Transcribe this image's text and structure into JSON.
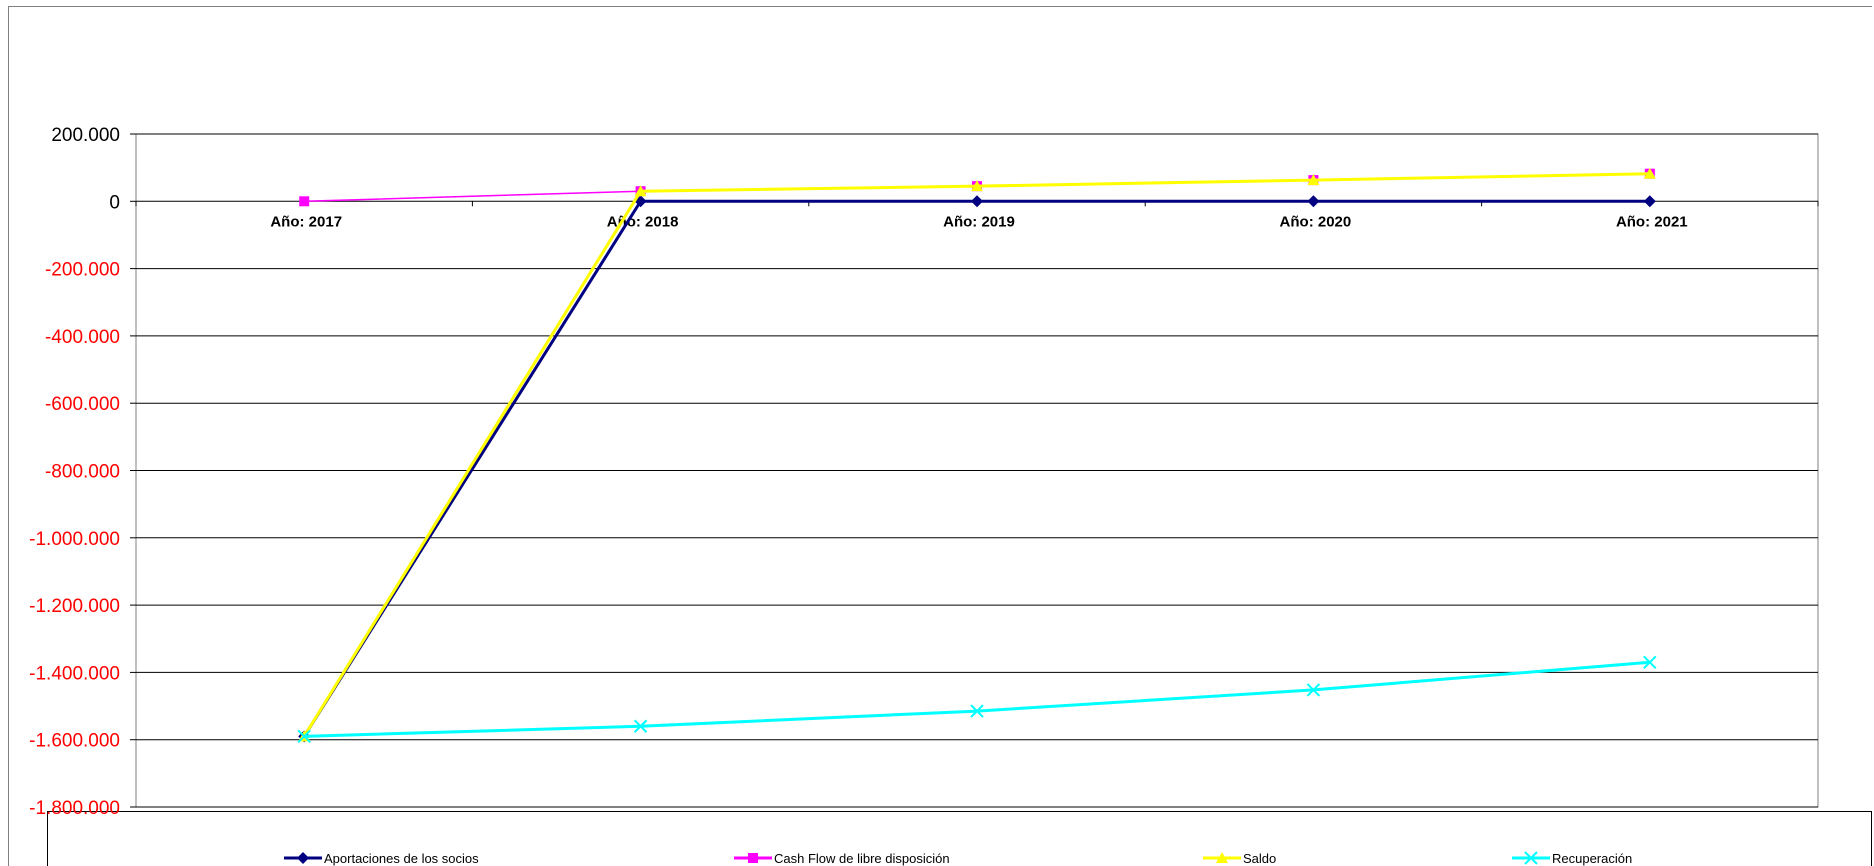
{
  "chart_data": {
    "type": "line",
    "categories": [
      "Año:  2017",
      "Año:  2018",
      "Año:  2019",
      "Año:  2020",
      "Año:  2021"
    ],
    "ylim": [
      -1800000,
      200000
    ],
    "yticks": [
      200000,
      0,
      -200000,
      -400000,
      -600000,
      -800000,
      -1000000,
      -1200000,
      -1400000,
      -1600000,
      -1800000
    ],
    "ytick_labels": [
      "200.000",
      "0",
      "-200.000",
      "-400.000",
      "-600.000",
      "-800.000",
      "-1.000.000",
      "-1.200.000",
      "-1.400.000",
      "-1.600.000",
      "-1.800.000"
    ],
    "grid": true,
    "legend_position": "bottom",
    "series": [
      {
        "name": "Aportaciones de los socios",
        "color": "#000080",
        "marker": "diamond",
        "values": [
          -1590000,
          0,
          0,
          0,
          0
        ]
      },
      {
        "name": "Cash Flow de libre disposición",
        "color": "#FF00FF",
        "marker": "square",
        "values": [
          0,
          30000,
          45000,
          63000,
          82000
        ]
      },
      {
        "name": "Saldo",
        "color": "#FFFF00",
        "marker": "triangle",
        "values": [
          -1590000,
          30000,
          45000,
          63000,
          82000
        ]
      },
      {
        "name": "Recuperación",
        "color": "#00FFFF",
        "marker": "x",
        "values": [
          -1590000,
          -1560000,
          -1515000,
          -1452000,
          -1370000
        ]
      }
    ],
    "tick_colors": {
      "positive": "#000000",
      "negative": "#FF0000"
    }
  }
}
